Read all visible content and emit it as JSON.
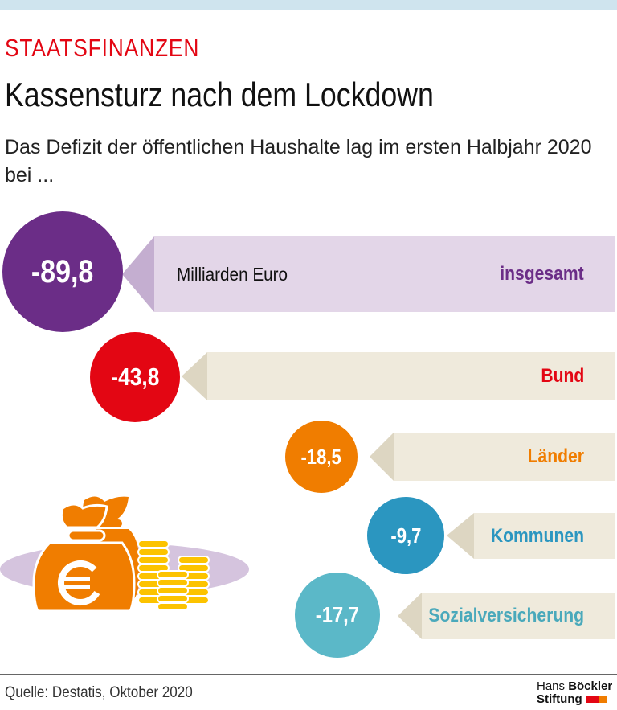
{
  "kicker": "STAATSFINANZEN",
  "title": "Kassensturz nach dem Lockdown",
  "subtitle": "Das Defizit der öffentlichen Haushalte lag im ersten Halbjahr 2020 bei ...",
  "unit": "Milliarden Euro",
  "items": [
    {
      "label": "insgesamt",
      "value": "-89,8",
      "color": "#6b2d87"
    },
    {
      "label": "Bund",
      "value": "-43,8",
      "color": "#e30613"
    },
    {
      "label": "Länder",
      "value": "-18,5",
      "color": "#f07d00"
    },
    {
      "label": "Kommunen",
      "value": "-9,7",
      "color": "#2b96c0"
    },
    {
      "label": "Sozialversicherung",
      "value": "-17,7",
      "color": "#5bb8c8"
    }
  ],
  "source": "Quelle: Destatis, Oktober 2020",
  "logo": {
    "line1a": "Hans ",
    "line1b": "Böckler",
    "line2": "Stiftung"
  },
  "illustration": {
    "icons": [
      "money-bag-euro-icon",
      "coin-stack-icon"
    ]
  }
}
